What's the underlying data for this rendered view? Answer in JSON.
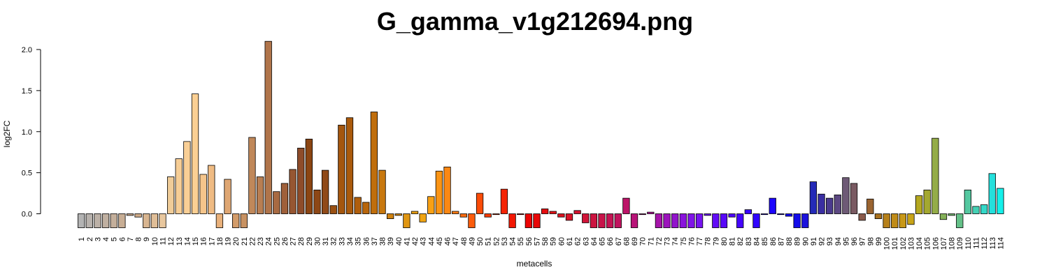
{
  "chart_data": {
    "type": "bar",
    "title": "G_gamma_v1g212694.png",
    "xlabel": "metacells",
    "ylabel": "log2FC",
    "ylim": [
      -0.17,
      2.1
    ],
    "yticks": [
      "0.0",
      "0.5",
      "1.0",
      "1.5",
      "2.0"
    ],
    "ytick_values": [
      0,
      0.5,
      1.0,
      1.5,
      2.0
    ],
    "grid": false,
    "categories": [
      "1",
      "2",
      "3",
      "4",
      "5",
      "6",
      "7",
      "8",
      "9",
      "10",
      "11",
      "12",
      "13",
      "14",
      "15",
      "16",
      "17",
      "18",
      "19",
      "20",
      "21",
      "22",
      "23",
      "24",
      "25",
      "26",
      "27",
      "28",
      "29",
      "30",
      "31",
      "32",
      "33",
      "34",
      "35",
      "36",
      "37",
      "38",
      "39",
      "40",
      "41",
      "42",
      "43",
      "44",
      "45",
      "46",
      "47",
      "48",
      "49",
      "50",
      "51",
      "52",
      "53",
      "54",
      "55",
      "56",
      "57",
      "58",
      "59",
      "60",
      "61",
      "62",
      "63",
      "64",
      "65",
      "66",
      "67",
      "68",
      "69",
      "70",
      "71",
      "72",
      "73",
      "74",
      "75",
      "76",
      "77",
      "78",
      "79",
      "80",
      "81",
      "82",
      "83",
      "84",
      "85",
      "86",
      "87",
      "88",
      "89",
      "90",
      "91",
      "92",
      "93",
      "94",
      "95",
      "96",
      "97",
      "98",
      "99",
      "100",
      "101",
      "102",
      "103",
      "104",
      "105",
      "106",
      "107",
      "108",
      "109",
      "110",
      "111",
      "112",
      "113",
      "114"
    ],
    "values": [
      -0.17,
      -0.17,
      -0.17,
      -0.17,
      -0.17,
      -0.17,
      -0.02,
      -0.04,
      -0.17,
      -0.17,
      -0.17,
      0.45,
      0.67,
      0.88,
      1.46,
      0.48,
      0.59,
      -0.17,
      0.42,
      -0.17,
      -0.17,
      0.93,
      0.45,
      2.1,
      0.27,
      0.37,
      0.54,
      0.8,
      0.91,
      0.29,
      0.53,
      0.1,
      1.08,
      1.17,
      0.2,
      0.14,
      1.24,
      0.53,
      -0.06,
      -0.02,
      -0.17,
      0.03,
      -0.1,
      0.21,
      0.52,
      0.57,
      0.03,
      -0.04,
      -0.17,
      0.25,
      -0.04,
      -0.01,
      0.3,
      -0.17,
      -0.01,
      -0.17,
      -0.17,
      0.06,
      0.03,
      -0.04,
      -0.08,
      0.04,
      -0.11,
      -0.17,
      -0.17,
      -0.17,
      -0.17,
      0.19,
      -0.17,
      -0.01,
      0.02,
      -0.17,
      -0.17,
      -0.17,
      -0.17,
      -0.17,
      -0.17,
      -0.02,
      -0.17,
      -0.17,
      -0.04,
      -0.17,
      0.05,
      -0.17,
      -0.01,
      0.19,
      -0.01,
      -0.03,
      -0.17,
      -0.17,
      0.39,
      0.24,
      0.19,
      0.23,
      0.44,
      0.37,
      -0.08,
      0.18,
      -0.06,
      -0.17,
      -0.17,
      -0.17,
      -0.13,
      0.22,
      0.29,
      0.92,
      -0.07,
      -0.02,
      -0.17,
      0.29,
      0.09,
      0.11,
      0.49,
      0.31
    ],
    "colors": [
      "#b3b3b3",
      "#b8b2ad",
      "#bcb1a7",
      "#c0b0a1",
      "#c4af9b",
      "#c8ae95",
      "#ccad8f",
      "#d0ac89",
      "#d8b590",
      "#e0be97",
      "#e8c79e",
      "#f0cc98",
      "#f6cd95",
      "#f9cf96",
      "#fbcf93",
      "#f5c58b",
      "#efbb83",
      "#e9b17b",
      "#dea672",
      "#d39c6a",
      "#c89262",
      "#c0885a",
      "#b87e52",
      "#b0744a",
      "#a86a42",
      "#9f603a",
      "#965632",
      "#8e4c2a",
      "#8b4513",
      "#8d4716",
      "#904a18",
      "#9a5012",
      "#a4560e",
      "#aa5a0c",
      "#b05e0c",
      "#b8660c",
      "#c06e0c",
      "#c8780e",
      "#d08210",
      "#d88c10",
      "#e09612",
      "#e89e12",
      "#f0a412",
      "#f8a014",
      "#fb9414",
      "#fb8814",
      "#fb7c14",
      "#fb6c10",
      "#fb5c0c",
      "#fb4c08",
      "#fb3c06",
      "#f83004",
      "#f52404",
      "#f21804",
      "#ef0c04",
      "#ec0404",
      "#e80808",
      "#e40e10",
      "#e01418",
      "#dc1420",
      "#d81428",
      "#d41430",
      "#d01438",
      "#cc1440",
      "#c8144a",
      "#c41454",
      "#c0145e",
      "#bc1468",
      "#b81478",
      "#b41488",
      "#b01498",
      "#a614aa",
      "#9c14bc",
      "#9214cc",
      "#8a14dc",
      "#8014e8",
      "#7614f0",
      "#6c10f4",
      "#620cf6",
      "#5808f8",
      "#4e06fa",
      "#4404fc",
      "#3a04fd",
      "#3004fe",
      "#2606fe",
      "#1c06fe",
      "#1406fa",
      "#1206f2",
      "#140cea",
      "#1c12dc",
      "#242ab8",
      "#3a2ea2",
      "#4b3a8e",
      "#5c4882",
      "#6e5a76",
      "#7a5a62",
      "#8a5a4a",
      "#9a6430",
      "#a8701e",
      "#b6801a",
      "#c08c18",
      "#c89818",
      "#c8a418",
      "#b4a820",
      "#a4a830",
      "#94ac48",
      "#84b058",
      "#74b870",
      "#64c088",
      "#54c8a0",
      "#44d0b4",
      "#34d8c8",
      "#24e0dc",
      "#14f0ea"
    ]
  }
}
